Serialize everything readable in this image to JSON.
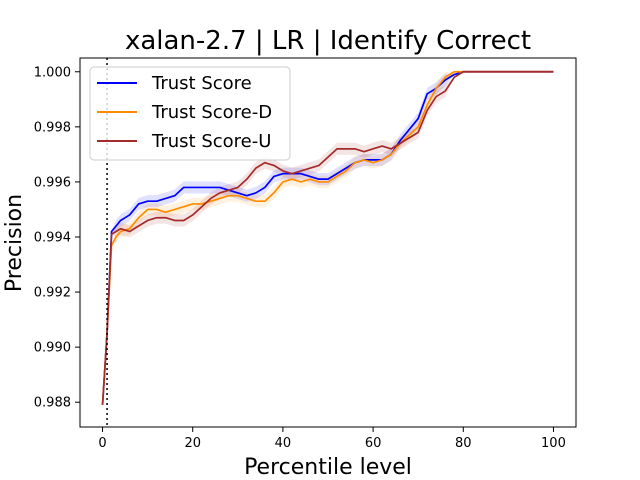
{
  "chart_data": {
    "type": "line",
    "title": "xalan-2.7 | LR | Identify Correct",
    "xlabel": "Percentile level",
    "ylabel": "Precision",
    "xlim": [
      -5,
      105
    ],
    "ylim": [
      0.9871,
      1.0005
    ],
    "xticks": [
      0,
      20,
      40,
      60,
      80,
      100
    ],
    "yticks": [
      0.988,
      0.99,
      0.992,
      0.994,
      0.996,
      0.998,
      1.0
    ],
    "ytick_labels": [
      "0.988",
      "0.990",
      "0.992",
      "0.994",
      "0.996",
      "0.998",
      "1.000"
    ],
    "reference_line_x": 1,
    "grid": false,
    "legend_position": "top-left",
    "series": [
      {
        "name": "Trust Score",
        "color": "#0000ff",
        "x": [
          0,
          1,
          2,
          3,
          4,
          6,
          8,
          10,
          12,
          14,
          16,
          18,
          20,
          22,
          24,
          26,
          28,
          30,
          32,
          34,
          36,
          38,
          40,
          42,
          44,
          46,
          48,
          50,
          52,
          54,
          56,
          58,
          60,
          62,
          64,
          66,
          68,
          70,
          72,
          74,
          76,
          78,
          80,
          85,
          90,
          95,
          100
        ],
        "y": [
          0.9879,
          0.9905,
          0.9942,
          0.9944,
          0.9946,
          0.9948,
          0.9952,
          0.9953,
          0.9953,
          0.9954,
          0.9955,
          0.9958,
          0.9958,
          0.9958,
          0.9958,
          0.9958,
          0.9957,
          0.9956,
          0.9955,
          0.9956,
          0.9958,
          0.9962,
          0.9963,
          0.9963,
          0.9963,
          0.9962,
          0.9961,
          0.9961,
          0.9963,
          0.9965,
          0.9967,
          0.9968,
          0.9968,
          0.9968,
          0.997,
          0.9975,
          0.9979,
          0.9983,
          0.9992,
          0.9994,
          0.9997,
          0.9999,
          1.0,
          1.0,
          1.0,
          1.0,
          1.0
        ]
      },
      {
        "name": "Trust Score-D",
        "color": "#ff8c00",
        "x": [
          0,
          1,
          2,
          3,
          4,
          6,
          8,
          10,
          12,
          14,
          16,
          18,
          20,
          22,
          24,
          26,
          28,
          30,
          32,
          34,
          36,
          38,
          40,
          42,
          44,
          46,
          48,
          50,
          52,
          54,
          56,
          58,
          60,
          62,
          64,
          66,
          68,
          70,
          72,
          74,
          76,
          78,
          80,
          85,
          90,
          95,
          100
        ],
        "y": [
          0.9879,
          0.9905,
          0.9937,
          0.994,
          0.9942,
          0.9943,
          0.9947,
          0.995,
          0.995,
          0.9949,
          0.995,
          0.9951,
          0.9952,
          0.9952,
          0.9953,
          0.9954,
          0.9955,
          0.9955,
          0.9954,
          0.9953,
          0.9953,
          0.9956,
          0.996,
          0.9961,
          0.996,
          0.9961,
          0.996,
          0.996,
          0.9962,
          0.9964,
          0.9967,
          0.9968,
          0.9967,
          0.9968,
          0.997,
          0.9974,
          0.9977,
          0.998,
          0.9988,
          0.9994,
          0.9998,
          1.0,
          1.0,
          1.0,
          1.0,
          1.0,
          1.0
        ]
      },
      {
        "name": "Trust Score-U",
        "color": "#a52a2a",
        "x": [
          0,
          1,
          2,
          3,
          4,
          6,
          8,
          10,
          12,
          14,
          16,
          18,
          20,
          22,
          24,
          26,
          28,
          30,
          32,
          34,
          36,
          38,
          40,
          42,
          44,
          46,
          48,
          50,
          52,
          54,
          56,
          58,
          60,
          62,
          64,
          66,
          68,
          70,
          72,
          74,
          76,
          78,
          80,
          85,
          90,
          95,
          100
        ],
        "y": [
          0.9879,
          0.9905,
          0.9941,
          0.9942,
          0.9943,
          0.9942,
          0.9944,
          0.9946,
          0.9947,
          0.9947,
          0.9946,
          0.9946,
          0.9948,
          0.9951,
          0.9954,
          0.9956,
          0.9957,
          0.9958,
          0.9961,
          0.9965,
          0.9967,
          0.9966,
          0.9964,
          0.9963,
          0.9964,
          0.9965,
          0.9966,
          0.9969,
          0.9972,
          0.9972,
          0.9972,
          0.9971,
          0.9972,
          0.9973,
          0.9972,
          0.9974,
          0.9976,
          0.9978,
          0.9986,
          0.9991,
          0.9993,
          0.9998,
          1.0,
          1.0,
          1.0,
          1.0,
          1.0
        ]
      }
    ]
  }
}
